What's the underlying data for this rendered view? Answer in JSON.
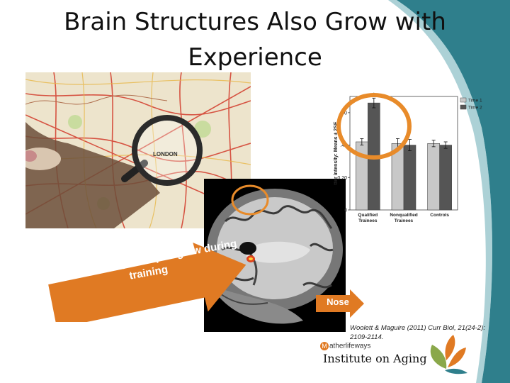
{
  "slide": {
    "title": "Brain Structures Also Grow with Experience",
    "map_label": "LONDON",
    "hippo_callout": "Posterior Hippocampus grew during training",
    "nose_label": "Nose",
    "citation": "Woolett & Maguire (2011) Curr Biol, 21(24-2): 2109-2114.",
    "logo": {
      "brand": "atherlifeways",
      "brand_initial": "M",
      "name": "Institute on Aging"
    }
  },
  "colors": {
    "teal": "#2f7f8c",
    "orange": "#e07a23",
    "highlight_ring": "#e88b2a"
  },
  "chart_data": {
    "type": "bar",
    "categories": [
      "Qualified Trainees",
      "Nonqualified Trainees",
      "Controls"
    ],
    "series": [
      {
        "name": "Time 1",
        "color": "#c8c8c8",
        "values": [
          0.42,
          0.41,
          0.41
        ]
      },
      {
        "name": "Time 2",
        "color": "#555555",
        "values": [
          0.66,
          0.4,
          0.4
        ]
      }
    ],
    "errors": [
      [
        0.02,
        0.03,
        0.02
      ],
      [
        0.03,
        0.035,
        0.02
      ]
    ],
    "ylim": [
      0,
      0.7
    ],
    "yticks": [
      ".60",
      ".40",
      "0.20",
      "0"
    ],
    "ylabel": "tter intensity: Means ± 2SE",
    "annotation": "*"
  }
}
